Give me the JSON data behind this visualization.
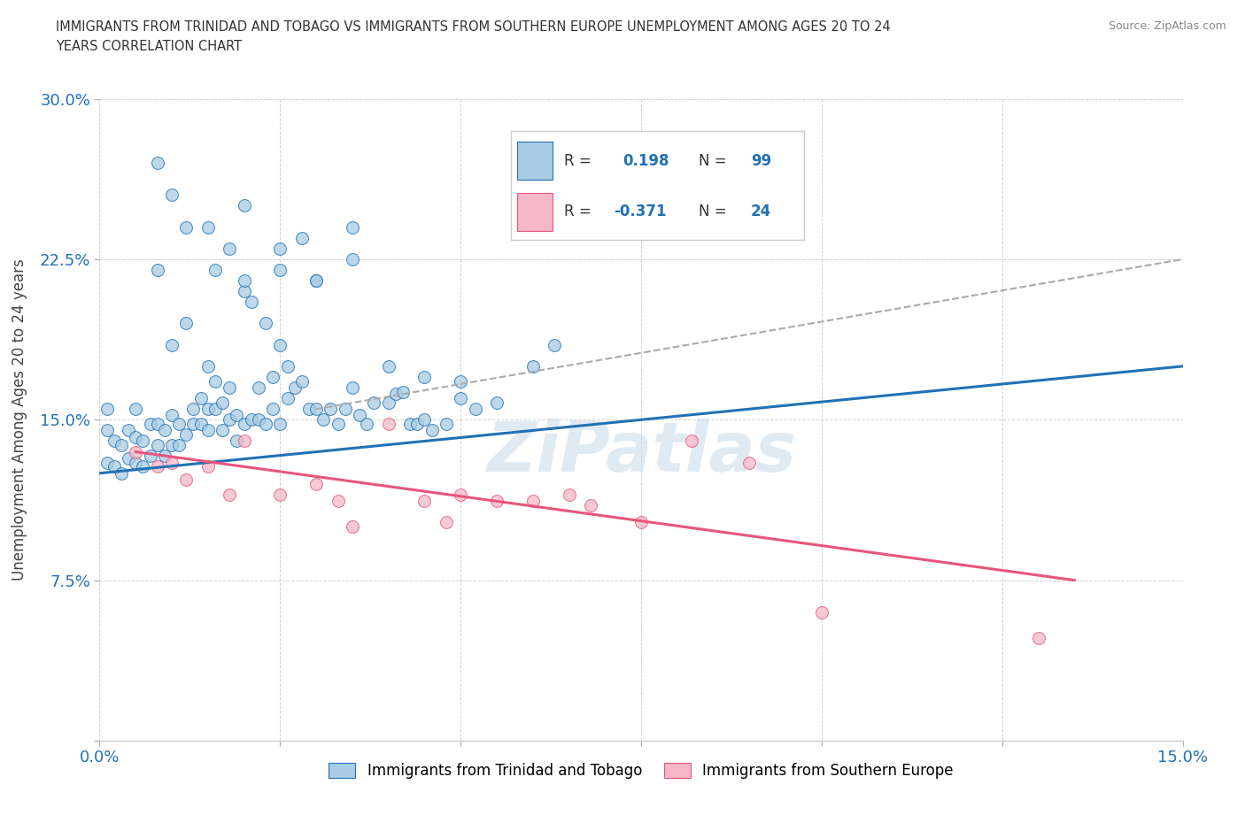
{
  "title_line1": "IMMIGRANTS FROM TRINIDAD AND TOBAGO VS IMMIGRANTS FROM SOUTHERN EUROPE UNEMPLOYMENT AMONG AGES 20 TO 24",
  "title_line2": "YEARS CORRELATION CHART",
  "source": "Source: ZipAtlas.com",
  "ylabel": "Unemployment Among Ages 20 to 24 years",
  "xlabel_blue": "Immigrants from Trinidad and Tobago",
  "xlabel_pink": "Immigrants from Southern Europe",
  "xlim": [
    0.0,
    0.15
  ],
  "ylim": [
    0.0,
    0.3
  ],
  "xticks": [
    0.0,
    0.025,
    0.05,
    0.075,
    0.1,
    0.125,
    0.15
  ],
  "yticks": [
    0.0,
    0.075,
    0.15,
    0.225,
    0.3
  ],
  "xtick_labels": [
    "0.0%",
    "",
    "",
    "",
    "",
    "",
    "15.0%"
  ],
  "ytick_labels": [
    "",
    "7.5%",
    "15.0%",
    "22.5%",
    "30.0%"
  ],
  "R_blue": 0.198,
  "N_blue": 99,
  "R_pink": -0.371,
  "N_pink": 24,
  "blue_color": "#a8cce4",
  "pink_color": "#f4b8c8",
  "blue_line_color": "#2171b5",
  "pink_line_color": "#e8567a",
  "dash_line_color": "#aaaaaa",
  "watermark": "ZiPatlas",
  "blue_line_x": [
    0.0,
    0.15
  ],
  "blue_line_y": [
    0.125,
    0.175
  ],
  "pink_line_x": [
    0.005,
    0.135
  ],
  "pink_line_y": [
    0.135,
    0.075
  ],
  "dash_line_x": [
    0.03,
    0.15
  ],
  "dash_line_y": [
    0.155,
    0.225
  ],
  "blue_scatter_x": [
    0.001,
    0.001,
    0.001,
    0.002,
    0.002,
    0.003,
    0.003,
    0.004,
    0.004,
    0.005,
    0.005,
    0.005,
    0.006,
    0.006,
    0.007,
    0.007,
    0.008,
    0.008,
    0.008,
    0.009,
    0.009,
    0.01,
    0.01,
    0.01,
    0.011,
    0.011,
    0.012,
    0.012,
    0.013,
    0.013,
    0.014,
    0.014,
    0.015,
    0.015,
    0.015,
    0.016,
    0.016,
    0.017,
    0.017,
    0.018,
    0.018,
    0.019,
    0.019,
    0.02,
    0.02,
    0.021,
    0.021,
    0.022,
    0.022,
    0.023,
    0.023,
    0.024,
    0.024,
    0.025,
    0.025,
    0.026,
    0.026,
    0.027,
    0.028,
    0.029,
    0.03,
    0.031,
    0.032,
    0.033,
    0.034,
    0.035,
    0.036,
    0.037,
    0.038,
    0.04,
    0.041,
    0.042,
    0.043,
    0.044,
    0.045,
    0.046,
    0.048,
    0.05,
    0.052,
    0.055,
    0.06,
    0.063,
    0.01,
    0.015,
    0.018,
    0.02,
    0.025,
    0.028,
    0.03,
    0.035,
    0.008,
    0.012,
    0.016,
    0.02,
    0.025,
    0.03,
    0.035,
    0.04,
    0.045,
    0.05
  ],
  "blue_scatter_y": [
    0.13,
    0.145,
    0.155,
    0.128,
    0.14,
    0.125,
    0.138,
    0.132,
    0.145,
    0.13,
    0.142,
    0.155,
    0.128,
    0.14,
    0.133,
    0.148,
    0.22,
    0.138,
    0.148,
    0.133,
    0.145,
    0.185,
    0.138,
    0.152,
    0.138,
    0.148,
    0.195,
    0.143,
    0.148,
    0.155,
    0.16,
    0.148,
    0.175,
    0.155,
    0.145,
    0.155,
    0.168,
    0.145,
    0.158,
    0.15,
    0.165,
    0.14,
    0.152,
    0.21,
    0.148,
    0.205,
    0.15,
    0.15,
    0.165,
    0.195,
    0.148,
    0.155,
    0.17,
    0.185,
    0.148,
    0.175,
    0.16,
    0.165,
    0.168,
    0.155,
    0.155,
    0.15,
    0.155,
    0.148,
    0.155,
    0.165,
    0.152,
    0.148,
    0.158,
    0.158,
    0.162,
    0.163,
    0.148,
    0.148,
    0.15,
    0.145,
    0.148,
    0.16,
    0.155,
    0.158,
    0.175,
    0.185,
    0.255,
    0.24,
    0.23,
    0.25,
    0.22,
    0.235,
    0.215,
    0.24,
    0.27,
    0.24,
    0.22,
    0.215,
    0.23,
    0.215,
    0.225,
    0.175,
    0.17,
    0.168
  ],
  "pink_scatter_x": [
    0.005,
    0.008,
    0.01,
    0.012,
    0.015,
    0.018,
    0.02,
    0.025,
    0.03,
    0.033,
    0.035,
    0.04,
    0.045,
    0.048,
    0.05,
    0.055,
    0.06,
    0.065,
    0.068,
    0.075,
    0.082,
    0.09,
    0.1,
    0.13
  ],
  "pink_scatter_y": [
    0.135,
    0.128,
    0.13,
    0.122,
    0.128,
    0.115,
    0.14,
    0.115,
    0.12,
    0.112,
    0.1,
    0.148,
    0.112,
    0.102,
    0.115,
    0.112,
    0.112,
    0.115,
    0.11,
    0.102,
    0.14,
    0.13,
    0.06,
    0.048
  ]
}
